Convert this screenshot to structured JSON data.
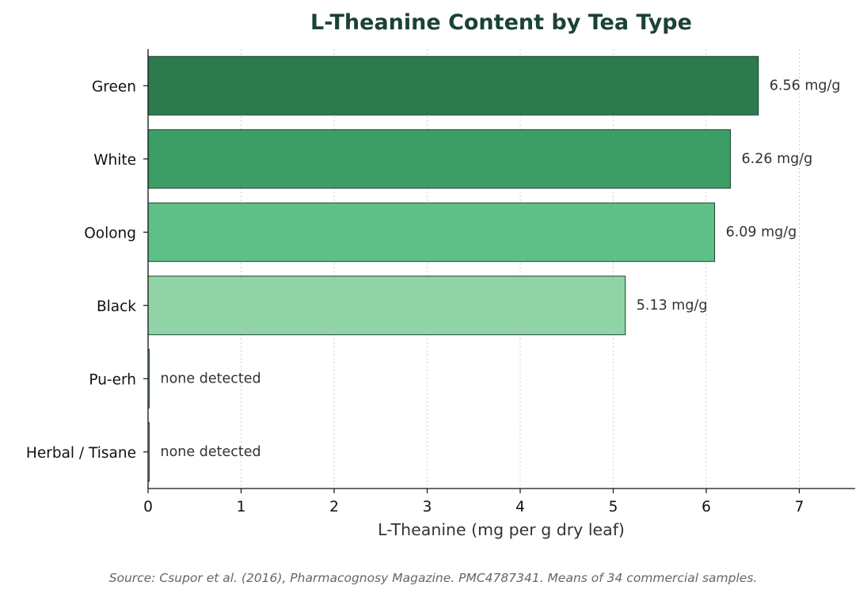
{
  "chart_data": {
    "type": "bar",
    "orientation": "horizontal",
    "title": "L-Theanine Content by Tea Type",
    "xlabel": "L-Theanine (mg per g dry leaf)",
    "ylabel": "",
    "xlim": [
      0,
      7.6
    ],
    "x_ticks": [
      "0",
      "1",
      "2",
      "3",
      "4",
      "5",
      "6",
      "7"
    ],
    "grid": "vertical dotted",
    "categories": [
      "Green",
      "White",
      "Oolong",
      "Black",
      "Pu-erh",
      "Herbal / Tisane"
    ],
    "values": [
      6.56,
      6.26,
      6.09,
      5.13,
      0,
      0
    ],
    "value_labels": [
      "6.56 mg/g",
      "6.26 mg/g",
      "6.09 mg/g",
      "5.13 mg/g",
      "none detected",
      "none detected"
    ],
    "colors": [
      "#2d7a4e",
      "#3d9d66",
      "#5ec087",
      "#90d3a7",
      "#b7e4c7",
      "#d8f3dc"
    ],
    "source": "Source: Csupor et al. (2016), Pharmacognosy Magazine. PMC4787341. Means of 34 commercial samples."
  }
}
